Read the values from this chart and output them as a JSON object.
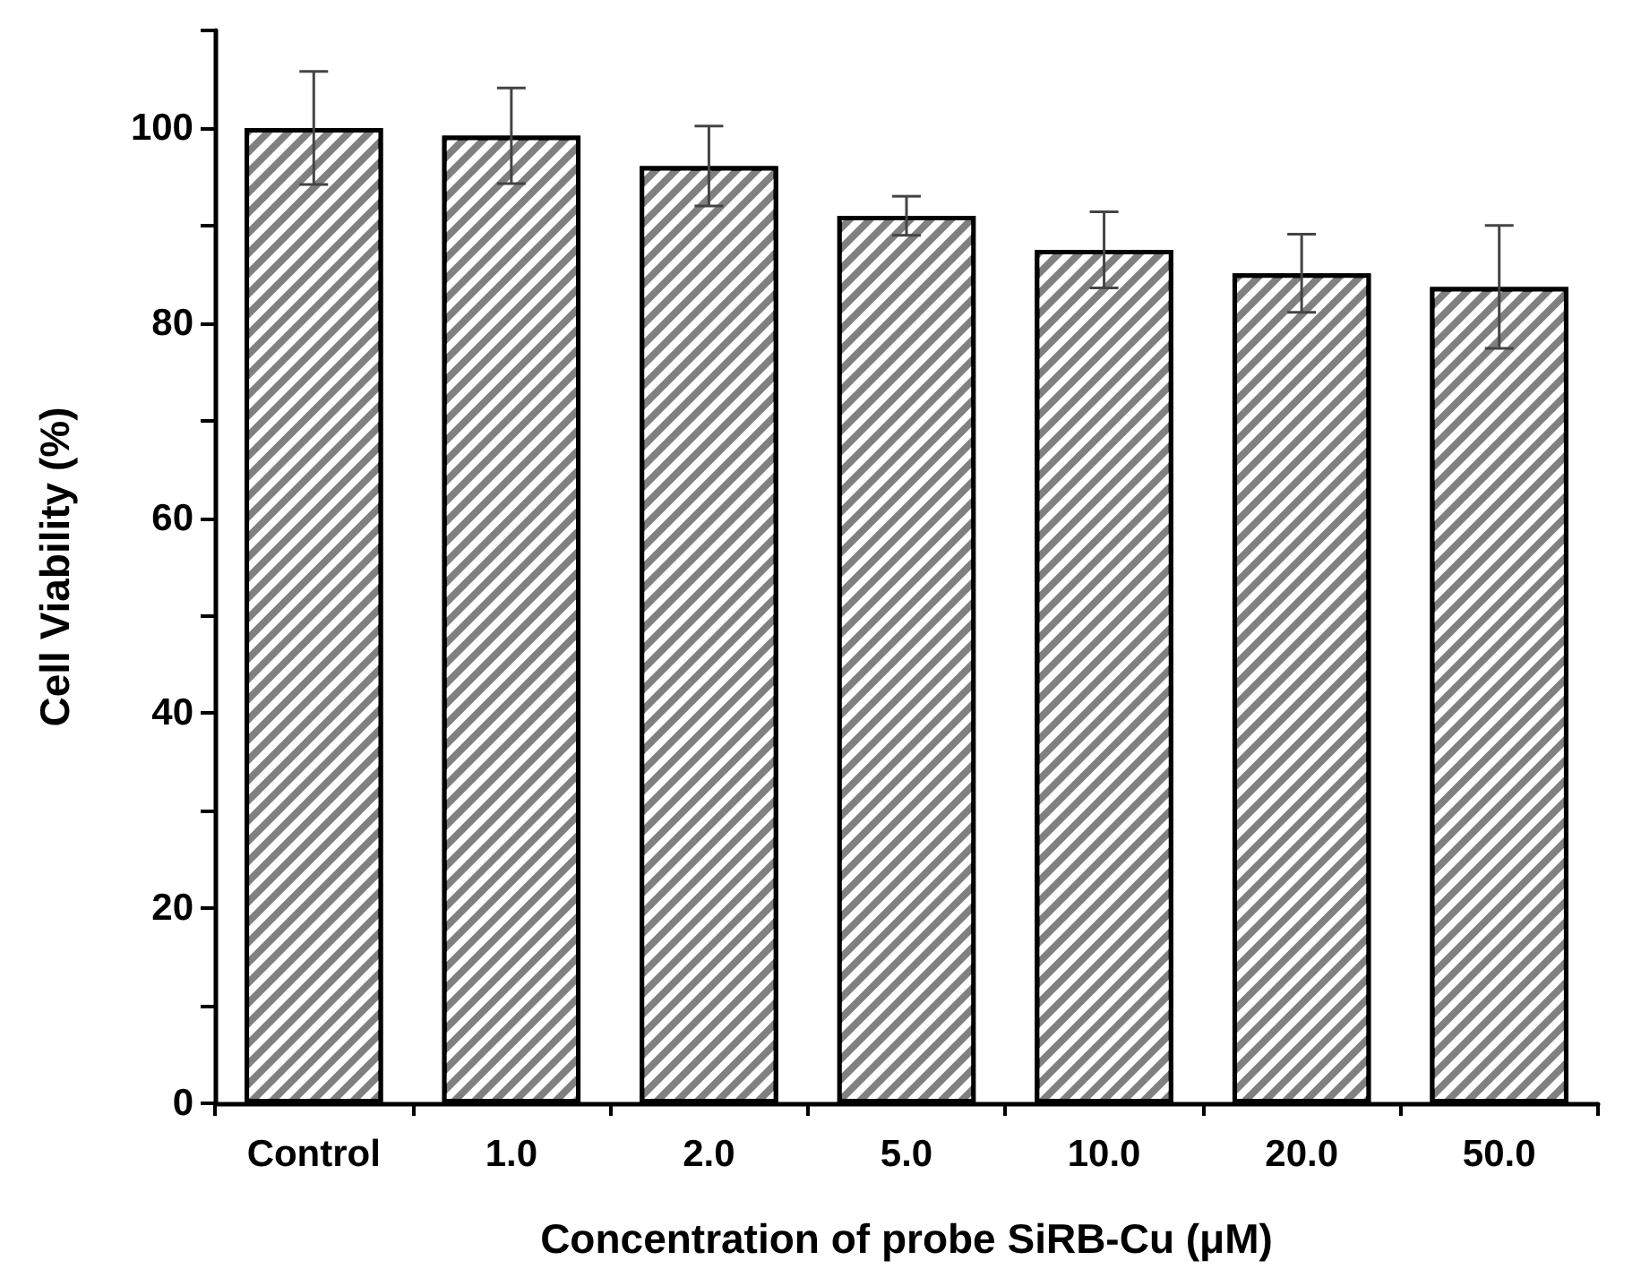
{
  "chart_data": {
    "type": "bar",
    "xlabel": "Concentration of probe SiRB-Cu (μM)",
    "ylabel": "Cell Viability (%)",
    "categories": [
      "Control",
      "1.0",
      "2.0",
      "5.0",
      "10.0",
      "20.0",
      "50.0"
    ],
    "series": [
      {
        "color": "#808080",
        "values": [
          100,
          99.2,
          96.1,
          91.0,
          87.5,
          85.1,
          83.7
        ],
        "errors": [
          5.8,
          4.9,
          4.1,
          2.0,
          3.9,
          4.0,
          6.3
        ]
      }
    ],
    "ylim": [
      0,
      110
    ],
    "yticks": [
      0,
      {
        "value": 10,
        "label": null
      },
      20,
      {
        "value": 30,
        "label": null
      },
      40,
      {
        "value": 50,
        "label": null
      },
      60,
      {
        "value": 70,
        "label": null
      },
      80,
      {
        "value": 90,
        "label": null
      },
      100,
      {
        "value": 110,
        "label": null
      }
    ],
    "grid": false,
    "legend": false
  }
}
